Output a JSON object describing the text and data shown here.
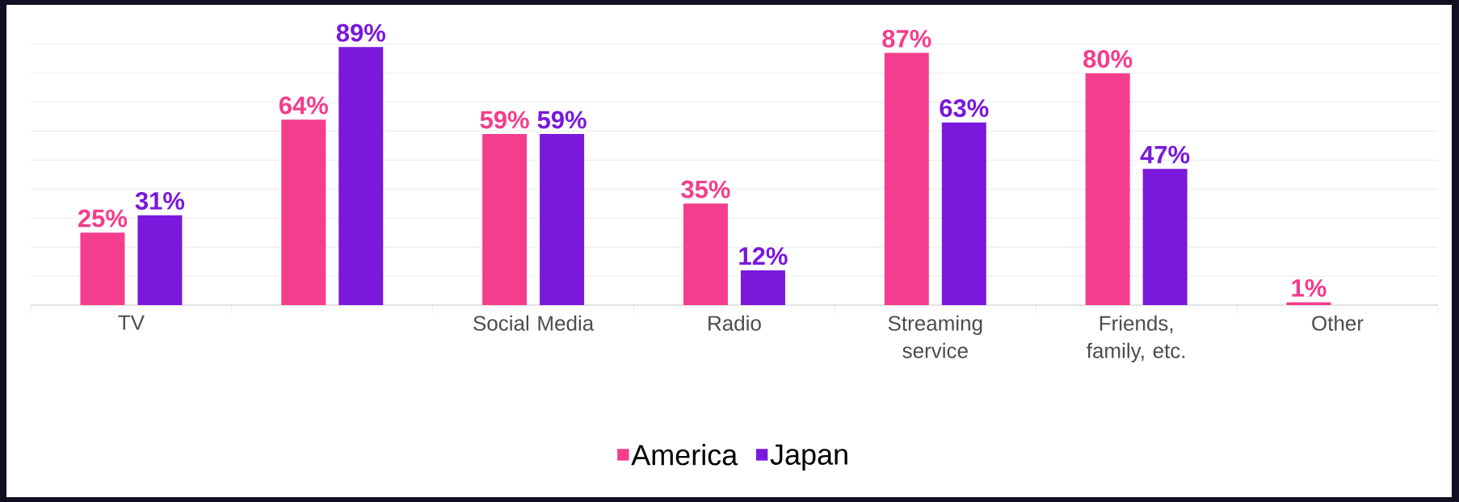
{
  "chart_data": {
    "type": "bar",
    "categories": [
      "TV",
      null,
      "Social Media",
      "Radio",
      "Streaming service",
      "Friends, family, etc.",
      "Other"
    ],
    "series": [
      {
        "name": "America",
        "color": "#f43d8c",
        "values": [
          25,
          64,
          59,
          35,
          87,
          80,
          1
        ],
        "value_labels": [
          "25%",
          "64%",
          "59%",
          "35%",
          "87%",
          "80%",
          "1%"
        ]
      },
      {
        "name": "Japan",
        "color": "#7a18dc",
        "values": [
          31,
          89,
          59,
          12,
          63,
          47,
          null
        ],
        "value_labels": [
          "31%",
          "89%",
          "59%",
          "12%",
          "63%",
          "47%",
          null
        ]
      }
    ],
    "grid": "y",
    "legend": "bottom",
    "tick_labels": "x"
  }
}
